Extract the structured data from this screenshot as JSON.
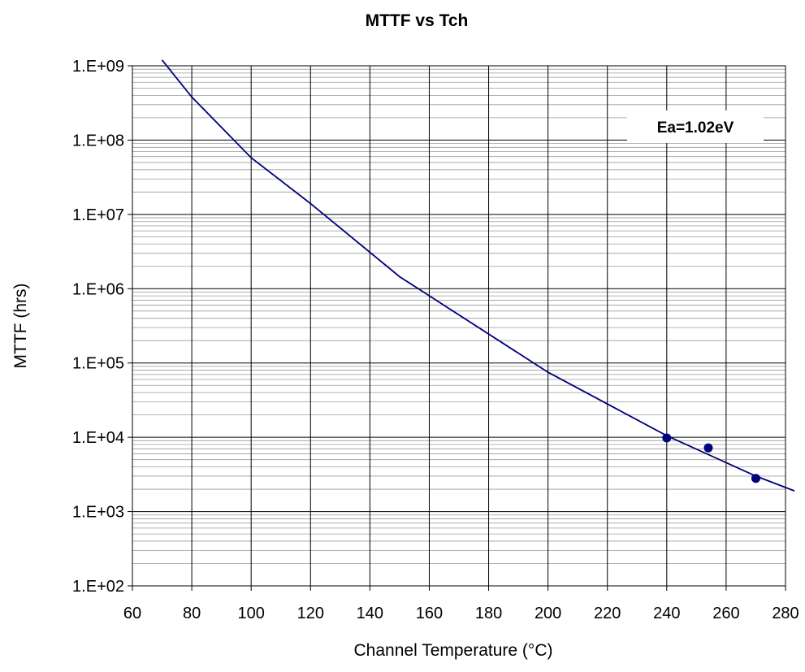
{
  "chart_data": {
    "type": "line",
    "title": "MTTF vs Tch",
    "xlabel": "Channel Temperature (°C)",
    "ylabel": "MTTF (hrs)",
    "xlim": [
      60,
      280
    ],
    "ylim": [
      100,
      1000000000
    ],
    "y_scale": "log",
    "grid": true,
    "x_ticks": [
      60,
      80,
      100,
      120,
      140,
      160,
      180,
      200,
      220,
      240,
      260,
      280
    ],
    "x_tick_labels": [
      "60",
      "80",
      "100",
      "120",
      "140",
      "160",
      "180",
      "200",
      "220",
      "240",
      "260",
      "280"
    ],
    "y_ticks": [
      100,
      1000,
      10000,
      100000,
      1000000,
      10000000,
      100000000,
      1000000000
    ],
    "y_tick_labels": [
      "1.E+02",
      "1.E+03",
      "1.E+04",
      "1.E+05",
      "1.E+06",
      "1.E+07",
      "1.E+08",
      "1.E+09"
    ],
    "annotation": "Ea=1.02eV",
    "annotation_placement": "top-right",
    "line_color": "#00007a",
    "series": [
      {
        "type": "line",
        "x": [
          70,
          80,
          100,
          120,
          150,
          200,
          240,
          270,
          283
        ],
        "y": [
          1200000000,
          380000000,
          58000000,
          14000000,
          1450000,
          75000,
          10500,
          3000,
          1900
        ]
      },
      {
        "type": "scatter",
        "x": [
          240,
          254,
          270
        ],
        "y": [
          9800,
          7200,
          2800
        ]
      }
    ]
  }
}
